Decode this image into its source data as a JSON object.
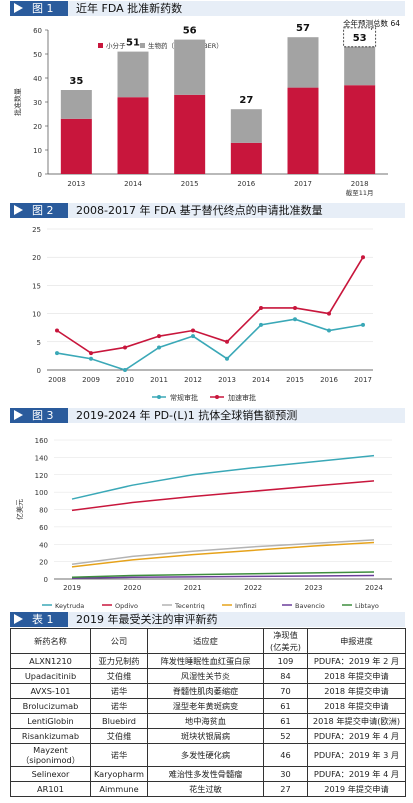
{
  "chart_data": [
    {
      "type": "bar",
      "fig_label": "图 1",
      "title": "近年 FDA 批准新药数",
      "ylabel": "批准数量",
      "ylim": [
        0,
        60
      ],
      "yticks": [
        0,
        10,
        20,
        30,
        40,
        50,
        60
      ],
      "categories": [
        "2013",
        "2014",
        "2015",
        "2016",
        "2017",
        "2018"
      ],
      "category_note": "截至11月",
      "series": [
        {
          "name": "小分子",
          "color": "#c8163c",
          "values": [
            23,
            32,
            33,
            13,
            36,
            37
          ]
        },
        {
          "name": "生物药（CDER、CBER）",
          "color": "#a3a3a3",
          "values": [
            12,
            19,
            23,
            14,
            21,
            16
          ]
        }
      ],
      "totals": [
        35,
        51,
        56,
        27,
        57,
        53
      ],
      "annotation": "全年预测总数 64",
      "annotation_value": 64
    },
    {
      "type": "line",
      "fig_label": "图 2",
      "title": "2008-2017 年 FDA 基于替代终点的申请批准数量",
      "ylim": [
        0,
        25
      ],
      "yticks": [
        0,
        5,
        10,
        15,
        20,
        25
      ],
      "x": [
        "2008",
        "2009",
        "2010",
        "2011",
        "2012",
        "2013",
        "2014",
        "2015",
        "2016",
        "2017"
      ],
      "series": [
        {
          "name": "常规审批",
          "color": "#3aa8b7",
          "values": [
            3,
            2,
            0,
            4,
            6,
            2,
            8,
            9,
            7,
            8
          ]
        },
        {
          "name": "加速审批",
          "color": "#c8163c",
          "values": [
            7,
            3,
            4,
            6,
            7,
            5,
            11,
            11,
            10,
            20
          ]
        }
      ]
    },
    {
      "type": "line",
      "fig_label": "图 3",
      "title": "2019-2024 年 PD-(L)1 抗体全球销售额预测",
      "ylabel": "亿美元",
      "ylim": [
        0,
        160
      ],
      "yticks": [
        0,
        20,
        40,
        60,
        80,
        100,
        120,
        140,
        160
      ],
      "x": [
        "2019",
        "2020",
        "2021",
        "2022",
        "2023",
        "2024"
      ],
      "series": [
        {
          "name": "Keytruda",
          "color": "#3aa8b7",
          "values": [
            92,
            108,
            120,
            128,
            135,
            142
          ]
        },
        {
          "name": "Opdivo",
          "color": "#c8163c",
          "values": [
            79,
            88,
            95,
            101,
            107,
            113
          ]
        },
        {
          "name": "Tecentriq",
          "color": "#b3b3b3",
          "values": [
            17,
            26,
            32,
            37,
            41,
            45
          ]
        },
        {
          "name": "Imfinzi",
          "color": "#e6a21a",
          "values": [
            14,
            22,
            28,
            33,
            38,
            42
          ]
        },
        {
          "name": "Bavencio",
          "color": "#6a3d9a",
          "values": [
            1,
            2,
            2.5,
            3,
            3.5,
            4
          ]
        },
        {
          "name": "Libtayo",
          "color": "#3e8e3e",
          "values": [
            2,
            4,
            5,
            6,
            7,
            8
          ]
        }
      ]
    }
  ],
  "table": {
    "fig_label": "表 1",
    "title": "2019 年最受关注的审评新药",
    "headers": [
      "新药名称",
      "公司",
      "适应症",
      "净现值（亿美元）",
      "申报进度"
    ],
    "npv_line1": "净现值",
    "npv_line2": "(亿美元)",
    "rows": [
      [
        "ALXN1210",
        "亚力兄制药",
        "阵发性睡眠性血红蛋白尿",
        "109",
        "PDUFA：2019 年 2 月"
      ],
      [
        "Upadacitinib",
        "艾伯维",
        "风湿性关节炎",
        "84",
        "2018 年提交申请"
      ],
      [
        "AVXS-101",
        "诺华",
        "脊髓性肌肉萎缩症",
        "70",
        "2018 年提交申请"
      ],
      [
        "Brolucizumab",
        "诺华",
        "湿型老年黄斑病变",
        "61",
        "2018 年提交申请"
      ],
      [
        "LentiGlobin",
        "Bluebird",
        "地中海贫血",
        "61",
        "2018 年提交申请(欧洲)"
      ],
      [
        "Risankizumab",
        "艾伯维",
        "斑块状银屑病",
        "52",
        "PDUFA：2019 年 4 月"
      ],
      [
        "Mayzent",
        "诺华",
        "多发性硬化病",
        "46",
        "PDUFA：2019 年 3 月"
      ],
      [
        "Selinexor",
        "Karyopharm",
        "难治性多发性骨髓瘤",
        "30",
        "PDUFA：2019 年 4 月"
      ],
      [
        "AR101",
        "Aimmune",
        "花生过敏",
        "27",
        "2019 年提交申请"
      ]
    ],
    "mayzent_sub": "（siponimod）"
  }
}
